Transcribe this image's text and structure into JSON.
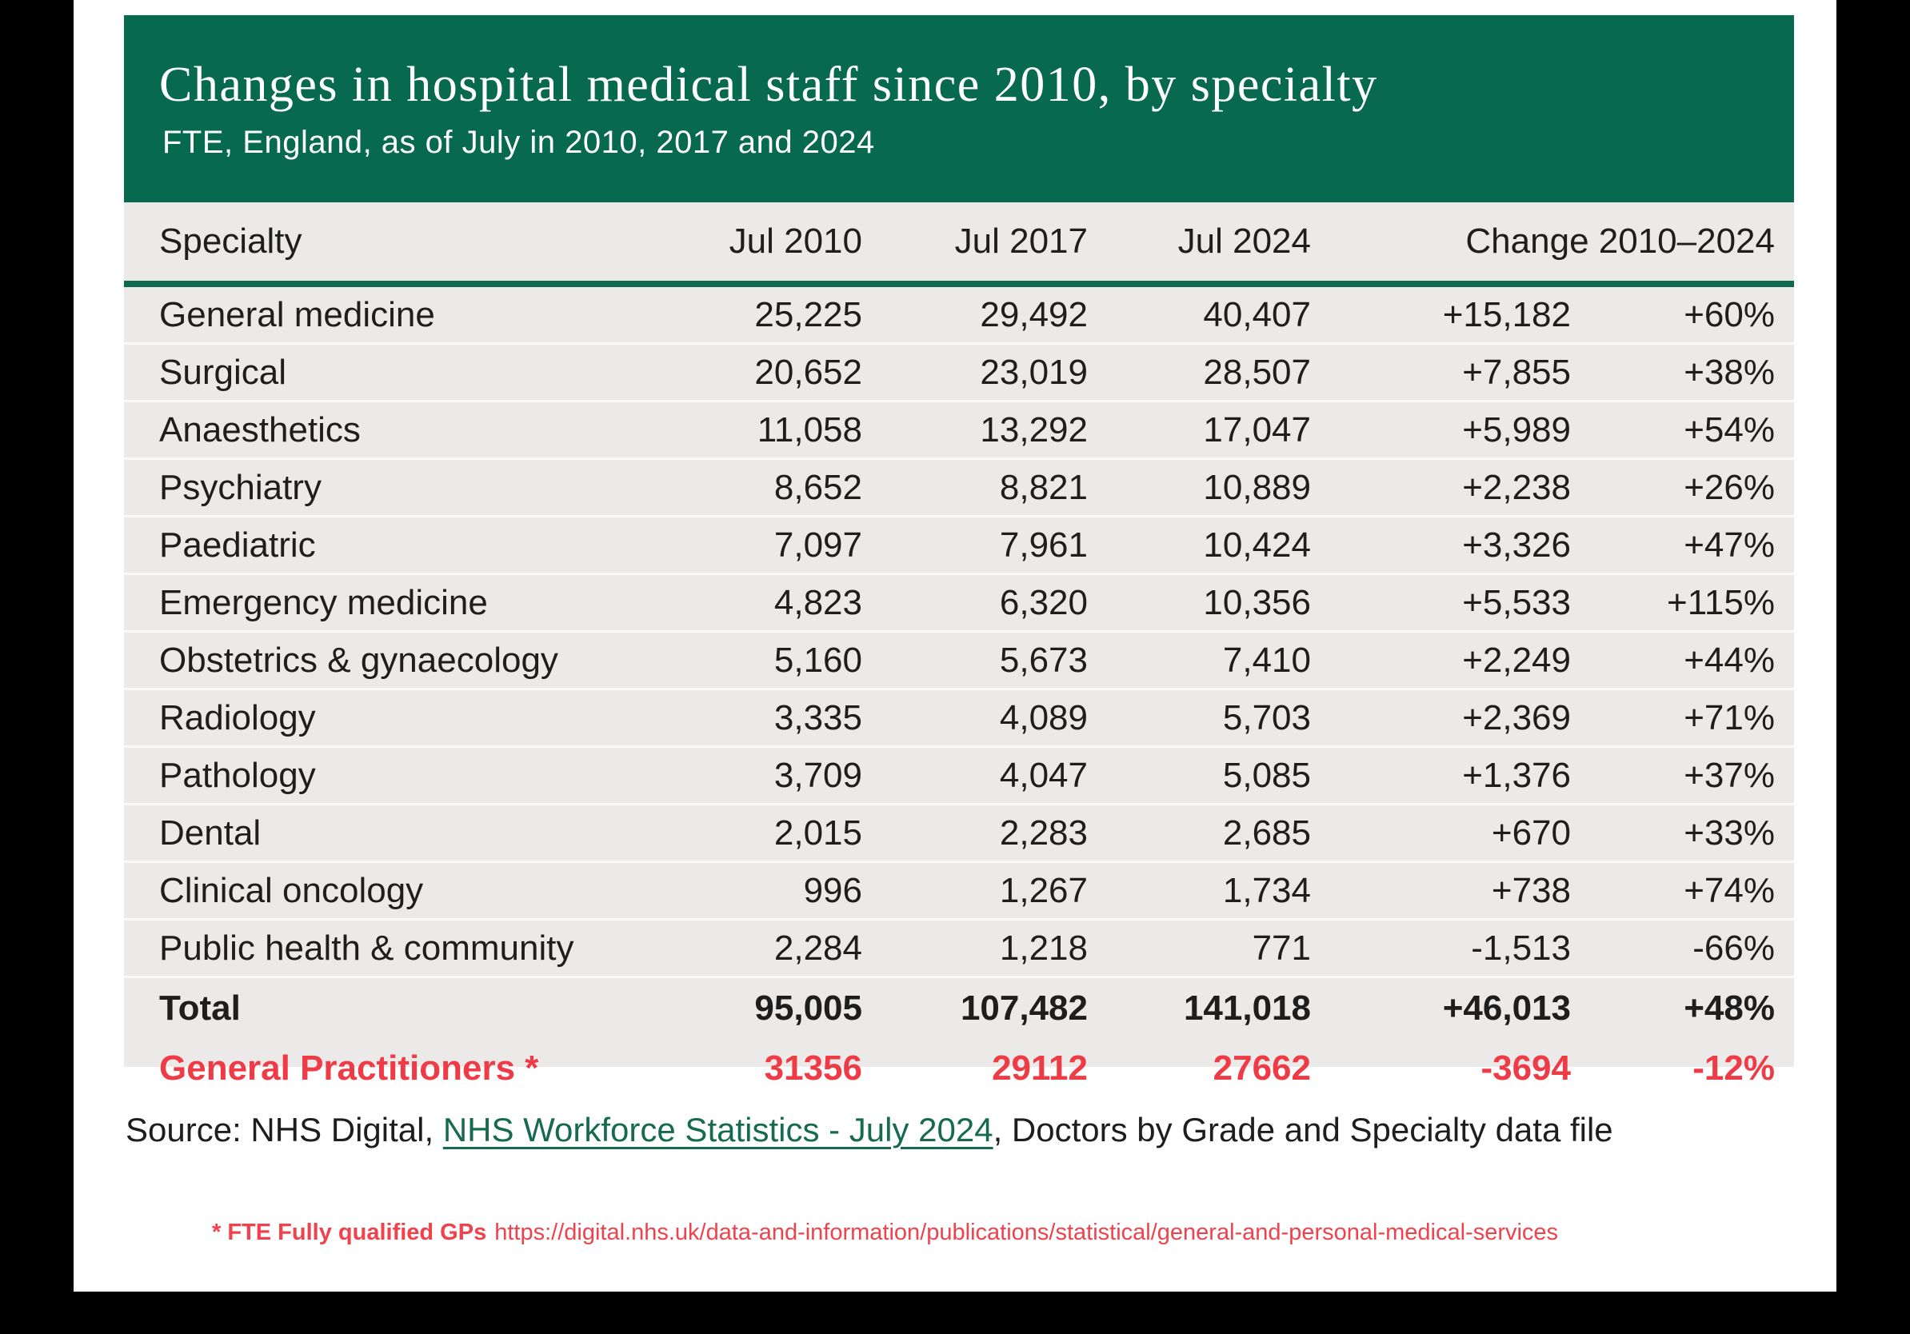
{
  "colors": {
    "header_green": "#07694E",
    "rule_green": "#0B6B4F",
    "row_gray": "#ECEAE8",
    "separator_white": "#FAF9F8",
    "accent_red": "#EE3B46",
    "footnote_red": "#F0424C",
    "link_green": "#156A50",
    "text_dark": "#1E1E1E",
    "frame_black": "#000000",
    "page_white": "#FFFFFF"
  },
  "header": {
    "title": "Changes in hospital medical staff since 2010, by specialty",
    "subtitle": "FTE, England, as of July in 2010, 2017 and 2024"
  },
  "table": {
    "columns": {
      "specialty": "Specialty",
      "jul2010": "Jul 2010",
      "jul2017": "Jul 2017",
      "jul2024": "Jul 2024",
      "change": "Change 2010–2024"
    },
    "rows": [
      {
        "specialty": "General medicine",
        "jul2010": "25,225",
        "jul2017": "29,492",
        "jul2024": "40,407",
        "change_abs": "+15,182",
        "change_pct": "+60%"
      },
      {
        "specialty": "Surgical",
        "jul2010": "20,652",
        "jul2017": "23,019",
        "jul2024": "28,507",
        "change_abs": "+7,855",
        "change_pct": "+38%"
      },
      {
        "specialty": "Anaesthetics",
        "jul2010": "11,058",
        "jul2017": "13,292",
        "jul2024": "17,047",
        "change_abs": "+5,989",
        "change_pct": "+54%"
      },
      {
        "specialty": "Psychiatry",
        "jul2010": "8,652",
        "jul2017": "8,821",
        "jul2024": "10,889",
        "change_abs": "+2,238",
        "change_pct": "+26%"
      },
      {
        "specialty": "Paediatric",
        "jul2010": "7,097",
        "jul2017": "7,961",
        "jul2024": "10,424",
        "change_abs": "+3,326",
        "change_pct": "+47%"
      },
      {
        "specialty": "Emergency medicine",
        "jul2010": "4,823",
        "jul2017": "6,320",
        "jul2024": "10,356",
        "change_abs": "+5,533",
        "change_pct": "+115%"
      },
      {
        "specialty": "Obstetrics & gynaecology",
        "jul2010": "5,160",
        "jul2017": "5,673",
        "jul2024": "7,410",
        "change_abs": "+2,249",
        "change_pct": "+44%"
      },
      {
        "specialty": "Radiology",
        "jul2010": "3,335",
        "jul2017": "4,089",
        "jul2024": "5,703",
        "change_abs": "+2,369",
        "change_pct": "+71%"
      },
      {
        "specialty": "Pathology",
        "jul2010": "3,709",
        "jul2017": "4,047",
        "jul2024": "5,085",
        "change_abs": "+1,376",
        "change_pct": "+37%"
      },
      {
        "specialty": "Dental",
        "jul2010": "2,015",
        "jul2017": "2,283",
        "jul2024": "2,685",
        "change_abs": "+670",
        "change_pct": "+33%"
      },
      {
        "specialty": "Clinical oncology",
        "jul2010": "996",
        "jul2017": "1,267",
        "jul2024": "1,734",
        "change_abs": "+738",
        "change_pct": "+74%"
      },
      {
        "specialty": "Public health & community",
        "jul2010": "2,284",
        "jul2017": "1,218",
        "jul2024": "771",
        "change_abs": "-1,513",
        "change_pct": "-66%"
      }
    ],
    "total_row": {
      "specialty": "Total",
      "jul2010": "95,005",
      "jul2017": "107,482",
      "jul2024": "141,018",
      "change_abs": "+46,013",
      "change_pct": "+48%"
    },
    "gp_row": {
      "specialty": "General Practitioners *",
      "jul2010": "31356",
      "jul2017": "29112",
      "jul2024": "27662",
      "change_abs": "-3694",
      "change_pct": "-12%"
    }
  },
  "source": {
    "prefix": "Source: NHS Digital, ",
    "link": "NHS Workforce Statistics - July 2024",
    "suffix": ", Doctors by Grade and Specialty data file"
  },
  "footnote": {
    "bold": "* FTE Fully qualified GPs",
    "url": "https://digital.nhs.uk/data-and-information/publications/statistical/general-and-personal-medical-services"
  },
  "chart_data": {
    "type": "table",
    "title": "Changes in hospital medical staff since 2010, by specialty",
    "subtitle": "FTE, England, as of July in 2010, 2017 and 2024",
    "columns": [
      "Specialty",
      "Jul 2010",
      "Jul 2017",
      "Jul 2024",
      "Change 2010–2024 (absolute)",
      "Change 2010–2024 (%)"
    ],
    "rows": [
      [
        "General medicine",
        25225,
        29492,
        40407,
        15182,
        60
      ],
      [
        "Surgical",
        20652,
        23019,
        28507,
        7855,
        38
      ],
      [
        "Anaesthetics",
        11058,
        13292,
        17047,
        5989,
        54
      ],
      [
        "Psychiatry",
        8652,
        8821,
        10889,
        2238,
        26
      ],
      [
        "Paediatric",
        7097,
        7961,
        10424,
        3326,
        47
      ],
      [
        "Emergency medicine",
        4823,
        6320,
        10356,
        5533,
        115
      ],
      [
        "Obstetrics & gynaecology",
        5160,
        5673,
        7410,
        2249,
        44
      ],
      [
        "Radiology",
        3335,
        4089,
        5703,
        2369,
        71
      ],
      [
        "Pathology",
        3709,
        4047,
        5085,
        1376,
        37
      ],
      [
        "Dental",
        2015,
        2283,
        2685,
        670,
        33
      ],
      [
        "Clinical oncology",
        996,
        1267,
        1734,
        738,
        74
      ],
      [
        "Public health & community",
        2284,
        1218,
        771,
        -1513,
        -66
      ],
      [
        "Total",
        95005,
        107482,
        141018,
        46013,
        48
      ],
      [
        "General Practitioners *",
        31356,
        29112,
        27662,
        -3694,
        -12
      ]
    ]
  }
}
